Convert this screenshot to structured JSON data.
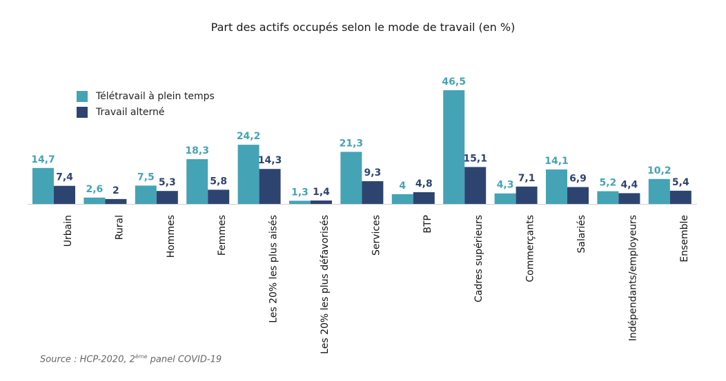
{
  "chart_data": {
    "type": "bar",
    "title": "Part des actifs occupés selon le mode de travail (en %)",
    "categories": [
      "Urbain",
      "Rural",
      "Hommes",
      "Femmes",
      "Les 20% les plus aisés",
      "Les 20% les plus défavorisés",
      "Services",
      "BTP",
      "Cadres supérieurs",
      "Commerçants",
      "Salariés",
      "Indépendants/employeurs",
      "Ensemble"
    ],
    "series": [
      {
        "name": "Télétravail à plein temps",
        "color": "#45a3b6",
        "values": [
          14.7,
          2.6,
          7.5,
          18.3,
          24.2,
          1.3,
          21.3,
          4,
          46.5,
          4.3,
          14.1,
          5.2,
          10.2
        ],
        "labels": [
          "14,7",
          "2,6",
          "7,5",
          "18,3",
          "24,2",
          "1,3",
          "21,3",
          "4",
          "46,5",
          "4,3",
          "14,1",
          "5,2",
          "10,2"
        ]
      },
      {
        "name": "Travail alterné",
        "color": "#2e4470",
        "values": [
          7.4,
          2,
          5.3,
          5.8,
          14.3,
          1.4,
          9.3,
          4.8,
          15.1,
          7.1,
          6.9,
          4.4,
          5.4
        ],
        "labels": [
          "7,4",
          "2",
          "5,3",
          "5,8",
          "14,3",
          "1,4",
          "9,3",
          "4,8",
          "15,1",
          "7,1",
          "6,9",
          "4,4",
          "5,4"
        ]
      }
    ],
    "legend_position": "top-left",
    "grid": false
  },
  "source": {
    "prefix": "Source : HCP-2020, 2",
    "superscript": "ème",
    "suffix": " panel COVID-19"
  }
}
